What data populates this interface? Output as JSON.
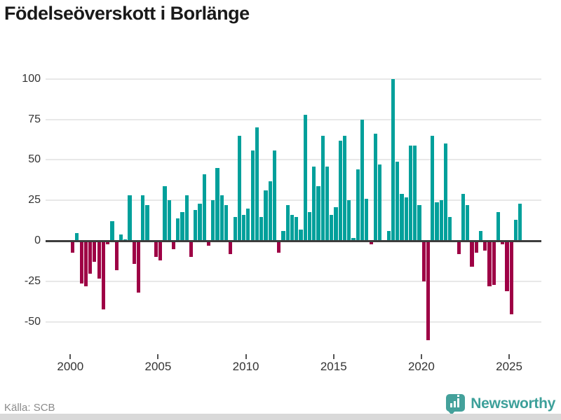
{
  "title": "Födelseöverskott i Borlänge",
  "source": "Källa: SCB",
  "branding": {
    "name": "Newsworthy",
    "icon": "bar-chart-speech-bubble",
    "color": "#3da09a"
  },
  "chart_data": {
    "type": "bar",
    "title": "Födelseöverskott i Borlänge",
    "xlabel": "",
    "ylabel": "",
    "frequency": "quarterly",
    "start_period": "2000Q1",
    "end_period": "2025Q3",
    "values": [
      -7,
      5,
      -26,
      -28,
      -20,
      -13,
      -23,
      -42,
      -2,
      12,
      -18,
      4,
      1,
      28,
      -14,
      -32,
      28,
      22,
      0,
      -10,
      -12,
      34,
      25,
      -5,
      14,
      18,
      28,
      -10,
      19,
      23,
      41,
      -3,
      25,
      45,
      28,
      22,
      -8,
      15,
      65,
      16,
      20,
      56,
      70,
      15,
      31,
      37,
      56,
      -7,
      6,
      22,
      16,
      15,
      7,
      78,
      18,
      46,
      34,
      65,
      46,
      16,
      21,
      62,
      65,
      25,
      2,
      44,
      75,
      26,
      -2,
      66,
      47,
      0,
      6,
      100,
      49,
      29,
      27,
      59,
      59,
      22,
      -25,
      -61,
      65,
      24,
      25,
      60,
      15,
      0,
      -8,
      29,
      22,
      -16,
      -7,
      6,
      -6,
      -28,
      -27,
      18,
      -2,
      -31,
      -45,
      13,
      23
    ],
    "x_ticks": [
      2000,
      2005,
      2010,
      2015,
      2020,
      2025
    ],
    "y_ticks": [
      100,
      75,
      50,
      25,
      0,
      -25,
      -50
    ],
    "ylim": [
      -65,
      105
    ],
    "grid": true,
    "legend": false,
    "colors": {
      "positive": "#00a09b",
      "negative": "#9e0045",
      "zero_line": "#3d3d3d",
      "grid": "#e8e8e8"
    }
  }
}
